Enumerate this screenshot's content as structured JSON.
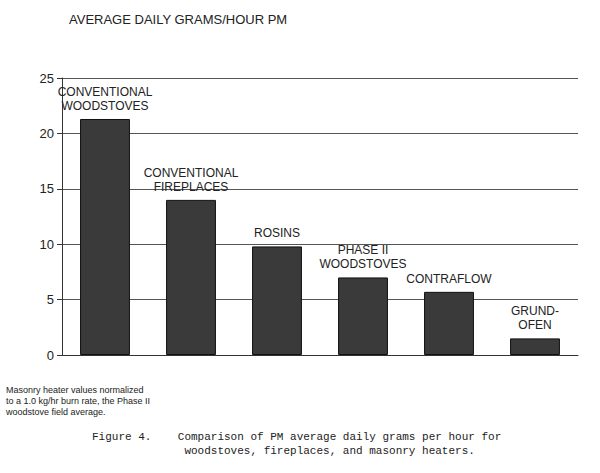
{
  "chart_data": {
    "type": "bar",
    "title": "AVERAGE DAILY GRAMS/HOUR PM",
    "categories": [
      "CONVENTIONAL\nWOODSTOVES",
      "CONVENTIONAL\nFIREPLACES",
      "ROSINS",
      "PHASE II\nWOODSTOVES",
      "CONTRAFLOW",
      "GRUND-\nOFEN"
    ],
    "values": [
      21.3,
      14,
      9.8,
      7,
      5.7,
      1.5
    ],
    "color": "#3a3a3a",
    "ylim": [
      0,
      25
    ],
    "yticks": [
      0,
      5,
      10,
      15,
      20,
      25
    ],
    "grid": true,
    "annotations": [
      "Masonry heater values normalized\nto a 1.0 kg/hr burn rate, the Phase II\nwoodstove field average.",
      "Figure 4.    Comparison of PM average daily grams per hour for\n              woodstoves, fireplaces, and masonry heaters."
    ]
  }
}
